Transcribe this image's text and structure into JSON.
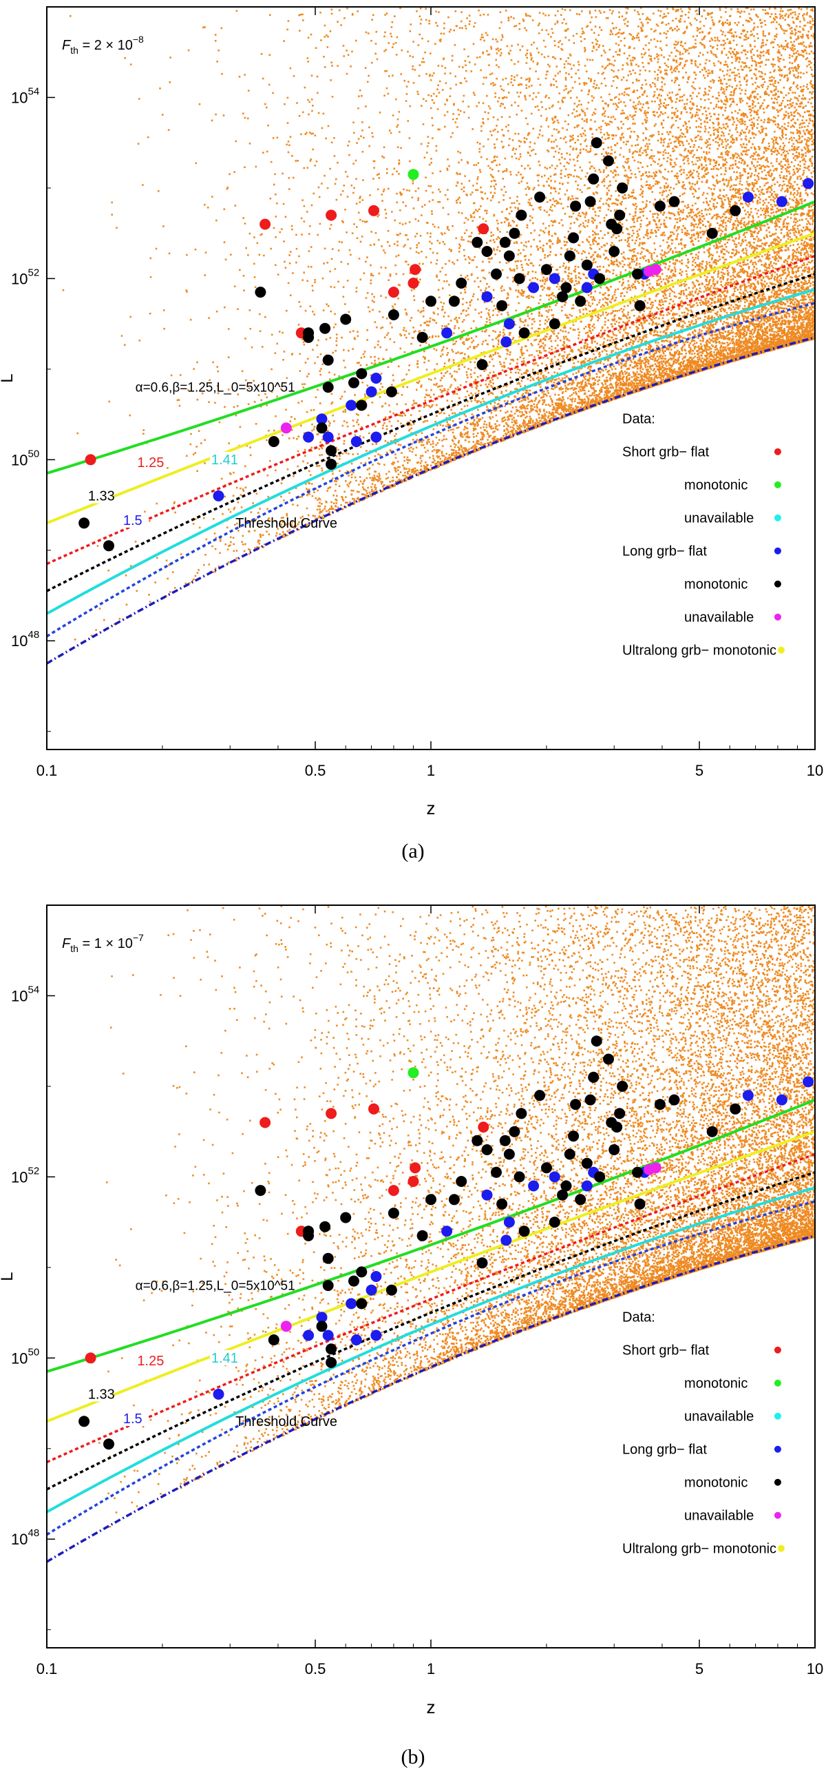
{
  "chart_data": [
    {
      "type": "scatter",
      "caption": "(a)",
      "flux_label": "2 × 10",
      "flux_exp": "−8",
      "xlabel": "z",
      "ylabel": "L",
      "xscale": "log",
      "yscale": "log",
      "xlim": [
        0.1,
        10
      ],
      "ylim_exp": [
        46.8,
        55.0
      ],
      "x_ticks": [
        "0.1",
        "0.5",
        "1",
        "5",
        "10"
      ],
      "x_tick_values": [
        0.1,
        0.5,
        1,
        5,
        10
      ],
      "y_ticks_exp": [
        "48",
        "50",
        "52",
        "54"
      ],
      "y_tick_values": [
        48,
        50,
        52,
        54
      ],
      "model_label": "α=0.6,β=1.25,L_0=5x10^51",
      "threshold_label": "Threshold Curve",
      "slope_labels": [
        "1.25",
        "1.41",
        "1.33",
        "1.5"
      ],
      "simulation_color": "#ee8a22"
    },
    {
      "type": "scatter",
      "caption": "(b)",
      "flux_label": "1 × 10",
      "flux_exp": "−7",
      "xlabel": "z",
      "ylabel": "L",
      "xscale": "log",
      "yscale": "log",
      "xlim": [
        0.1,
        10
      ],
      "ylim_exp": [
        46.8,
        55.0
      ],
      "x_ticks": [
        "0.1",
        "0.5",
        "1",
        "5",
        "10"
      ],
      "x_tick_values": [
        0.1,
        0.5,
        1,
        5,
        10
      ],
      "y_ticks_exp": [
        "48",
        "50",
        "52",
        "54"
      ],
      "y_tick_values": [
        48,
        50,
        52,
        54
      ],
      "model_label": "α=0.6,β=1.25,L_0=5x10^51",
      "threshold_label": "Threshold Curve",
      "slope_labels": [
        "1.25",
        "1.41",
        "1.33",
        "1.5"
      ],
      "simulation_color": "#ee8a22"
    }
  ],
  "legend": {
    "title": "Data:",
    "entries": [
      {
        "label": "Short grb− flat",
        "color": "#ee1c1c"
      },
      {
        "label": "monotonic",
        "color": "#22ee22"
      },
      {
        "label": "unavailable",
        "color": "#22eeee"
      },
      {
        "label": "Long grb− flat",
        "color": "#1c1cee"
      },
      {
        "label": "monotonic",
        "color": "#000000"
      },
      {
        "label": "unavailable",
        "color": "#ee22ee"
      },
      {
        "label": "Ultralong grb− monotonic",
        "color": "#eeee22"
      }
    ]
  },
  "lines": [
    {
      "name": "threshold",
      "color": "#1c1cbb",
      "style": "dashdot",
      "a": 47.75,
      "b": 2.5,
      "c": -0.35
    },
    {
      "name": "slope-1.5",
      "color": "#2244dd",
      "style": "dotted",
      "a": 48.05,
      "b": 2.6,
      "c": -0.38
    },
    {
      "name": "slope-1.41",
      "color": "#22dddd",
      "style": "solid",
      "a": 48.3,
      "b": 2.35,
      "c": -0.28
    },
    {
      "name": "slope-1.33",
      "color": "#000000",
      "style": "dotted",
      "a": 48.55,
      "b": 2.15,
      "c": -0.2
    },
    {
      "name": "slope-1.25",
      "color": "#ee1c1c",
      "style": "dotted",
      "a": 48.85,
      "b": 1.9,
      "c": -0.1
    },
    {
      "name": "ultralong-fit",
      "color": "#eeee22",
      "style": "solid",
      "a": 49.3,
      "b": 1.7,
      "c": -0.05
    },
    {
      "name": "monotonic-fit",
      "color": "#22dd22",
      "style": "solid",
      "a": 49.85,
      "b": 1.3,
      "c": 0.1
    }
  ],
  "observed": [
    {
      "z": 0.13,
      "logL": 50.0,
      "cls": "sflat"
    },
    {
      "z": 0.37,
      "logL": 52.6,
      "cls": "sflat"
    },
    {
      "z": 0.46,
      "logL": 51.4,
      "cls": "sflat"
    },
    {
      "z": 0.55,
      "logL": 52.7,
      "cls": "sflat"
    },
    {
      "z": 0.71,
      "logL": 52.75,
      "cls": "sflat"
    },
    {
      "z": 0.8,
      "logL": 51.85,
      "cls": "sflat"
    },
    {
      "z": 0.9,
      "logL": 51.95,
      "cls": "sflat"
    },
    {
      "z": 0.91,
      "logL": 52.1,
      "cls": "sflat"
    },
    {
      "z": 1.37,
      "logL": 52.55,
      "cls": "sflat"
    },
    {
      "z": 0.9,
      "logL": 53.15,
      "cls": "smono"
    },
    {
      "z": 0.28,
      "logL": 49.6,
      "cls": "lflat"
    },
    {
      "z": 0.48,
      "logL": 50.25,
      "cls": "lflat"
    },
    {
      "z": 0.52,
      "logL": 50.45,
      "cls": "lflat"
    },
    {
      "z": 0.54,
      "logL": 50.25,
      "cls": "lflat"
    },
    {
      "z": 0.62,
      "logL": 50.6,
      "cls": "lflat"
    },
    {
      "z": 0.64,
      "logL": 50.2,
      "cls": "lflat"
    },
    {
      "z": 0.7,
      "logL": 50.75,
      "cls": "lflat"
    },
    {
      "z": 0.72,
      "logL": 50.25,
      "cls": "lflat"
    },
    {
      "z": 0.72,
      "logL": 50.9,
      "cls": "lflat"
    },
    {
      "z": 1.1,
      "logL": 51.4,
      "cls": "lflat"
    },
    {
      "z": 1.4,
      "logL": 51.8,
      "cls": "lflat"
    },
    {
      "z": 1.57,
      "logL": 51.3,
      "cls": "lflat"
    },
    {
      "z": 1.6,
      "logL": 51.5,
      "cls": "lflat"
    },
    {
      "z": 1.85,
      "logL": 51.9,
      "cls": "lflat"
    },
    {
      "z": 2.1,
      "logL": 52.0,
      "cls": "lflat"
    },
    {
      "z": 2.55,
      "logL": 51.9,
      "cls": "lflat"
    },
    {
      "z": 2.65,
      "logL": 52.05,
      "cls": "lflat"
    },
    {
      "z": 3.6,
      "logL": 52.05,
      "cls": "lflat"
    },
    {
      "z": 6.7,
      "logL": 52.9,
      "cls": "lflat"
    },
    {
      "z": 8.2,
      "logL": 52.85,
      "cls": "lflat"
    },
    {
      "z": 9.6,
      "logL": 53.05,
      "cls": "lflat"
    },
    {
      "z": 0.125,
      "logL": 49.3,
      "cls": "lmono"
    },
    {
      "z": 0.145,
      "logL": 49.05,
      "cls": "lmono"
    },
    {
      "z": 0.36,
      "logL": 51.85,
      "cls": "lmono"
    },
    {
      "z": 0.39,
      "logL": 50.2,
      "cls": "lmono"
    },
    {
      "z": 0.48,
      "logL": 51.4,
      "cls": "lmono"
    },
    {
      "z": 0.48,
      "logL": 51.35,
      "cls": "lmono"
    },
    {
      "z": 0.52,
      "logL": 50.35,
      "cls": "lmono"
    },
    {
      "z": 0.53,
      "logL": 51.45,
      "cls": "lmono"
    },
    {
      "z": 0.54,
      "logL": 50.8,
      "cls": "lmono"
    },
    {
      "z": 0.54,
      "logL": 51.1,
      "cls": "lmono"
    },
    {
      "z": 0.55,
      "logL": 50.1,
      "cls": "lmono"
    },
    {
      "z": 0.55,
      "logL": 49.95,
      "cls": "lmono"
    },
    {
      "z": 0.6,
      "logL": 51.55,
      "cls": "lmono"
    },
    {
      "z": 0.63,
      "logL": 50.85,
      "cls": "lmono"
    },
    {
      "z": 0.66,
      "logL": 50.95,
      "cls": "lmono"
    },
    {
      "z": 0.66,
      "logL": 50.6,
      "cls": "lmono"
    },
    {
      "z": 0.79,
      "logL": 50.75,
      "cls": "lmono"
    },
    {
      "z": 0.8,
      "logL": 51.6,
      "cls": "lmono"
    },
    {
      "z": 0.95,
      "logL": 51.35,
      "cls": "lmono"
    },
    {
      "z": 1.0,
      "logL": 51.75,
      "cls": "lmono"
    },
    {
      "z": 1.15,
      "logL": 51.75,
      "cls": "lmono"
    },
    {
      "z": 1.2,
      "logL": 51.95,
      "cls": "lmono"
    },
    {
      "z": 1.32,
      "logL": 52.4,
      "cls": "lmono"
    },
    {
      "z": 1.36,
      "logL": 51.05,
      "cls": "lmono"
    },
    {
      "z": 1.4,
      "logL": 52.3,
      "cls": "lmono"
    },
    {
      "z": 1.48,
      "logL": 52.05,
      "cls": "lmono"
    },
    {
      "z": 1.53,
      "logL": 51.7,
      "cls": "lmono"
    },
    {
      "z": 1.56,
      "logL": 52.4,
      "cls": "lmono"
    },
    {
      "z": 1.6,
      "logL": 52.25,
      "cls": "lmono"
    },
    {
      "z": 1.65,
      "logL": 52.5,
      "cls": "lmono"
    },
    {
      "z": 1.7,
      "logL": 52.0,
      "cls": "lmono"
    },
    {
      "z": 1.72,
      "logL": 52.7,
      "cls": "lmono"
    },
    {
      "z": 1.75,
      "logL": 51.4,
      "cls": "lmono"
    },
    {
      "z": 1.92,
      "logL": 52.9,
      "cls": "lmono"
    },
    {
      "z": 2.0,
      "logL": 52.1,
      "cls": "lmono"
    },
    {
      "z": 2.1,
      "logL": 51.5,
      "cls": "lmono"
    },
    {
      "z": 2.2,
      "logL": 51.8,
      "cls": "lmono"
    },
    {
      "z": 2.25,
      "logL": 51.9,
      "cls": "lmono"
    },
    {
      "z": 2.3,
      "logL": 52.25,
      "cls": "lmono"
    },
    {
      "z": 2.35,
      "logL": 52.45,
      "cls": "lmono"
    },
    {
      "z": 2.38,
      "logL": 52.8,
      "cls": "lmono"
    },
    {
      "z": 2.45,
      "logL": 51.75,
      "cls": "lmono"
    },
    {
      "z": 2.55,
      "logL": 52.15,
      "cls": "lmono"
    },
    {
      "z": 2.6,
      "logL": 52.85,
      "cls": "lmono"
    },
    {
      "z": 2.65,
      "logL": 53.1,
      "cls": "lmono"
    },
    {
      "z": 2.7,
      "logL": 53.5,
      "cls": "lmono"
    },
    {
      "z": 2.75,
      "logL": 52.0,
      "cls": "lmono"
    },
    {
      "z": 2.9,
      "logL": 53.3,
      "cls": "lmono"
    },
    {
      "z": 2.95,
      "logL": 52.6,
      "cls": "lmono"
    },
    {
      "z": 3.0,
      "logL": 52.3,
      "cls": "lmono"
    },
    {
      "z": 3.05,
      "logL": 52.55,
      "cls": "lmono"
    },
    {
      "z": 3.1,
      "logL": 52.7,
      "cls": "lmono"
    },
    {
      "z": 3.15,
      "logL": 53.0,
      "cls": "lmono"
    },
    {
      "z": 3.45,
      "logL": 52.05,
      "cls": "lmono"
    },
    {
      "z": 3.5,
      "logL": 51.7,
      "cls": "lmono"
    },
    {
      "z": 3.95,
      "logL": 52.8,
      "cls": "lmono"
    },
    {
      "z": 4.3,
      "logL": 52.85,
      "cls": "lmono"
    },
    {
      "z": 5.4,
      "logL": 52.5,
      "cls": "lmono"
    },
    {
      "z": 6.2,
      "logL": 52.75,
      "cls": "lmono"
    },
    {
      "z": 0.42,
      "logL": 50.35,
      "cls": "lunav"
    },
    {
      "z": 3.85,
      "logL": 52.1,
      "cls": "lunav"
    },
    {
      "z": 3.7,
      "logL": 52.08,
      "cls": "lunav"
    }
  ]
}
